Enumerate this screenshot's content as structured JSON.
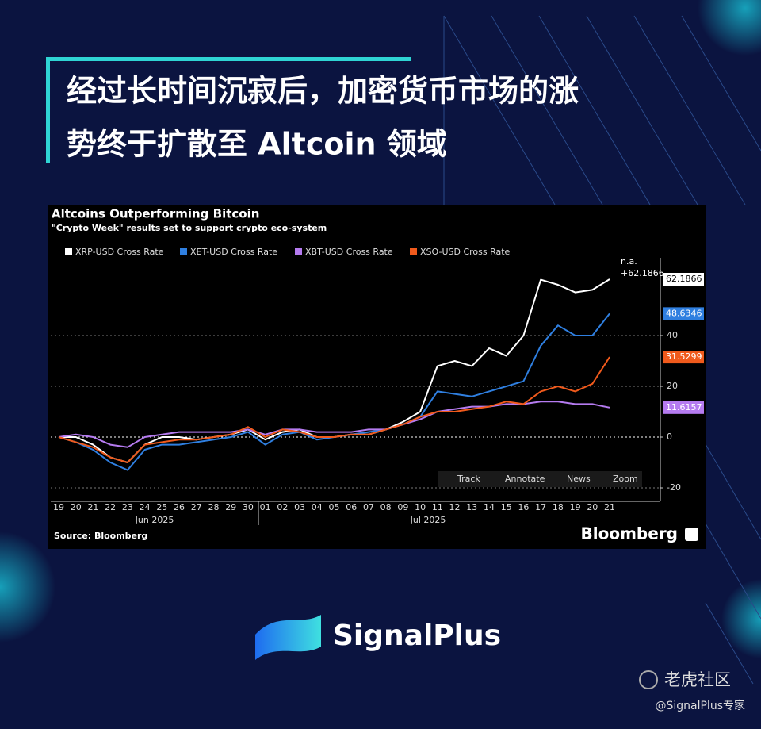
{
  "header": {
    "title_lines": [
      "经过长时间沉寂后，加密货币市场的涨",
      "势终于扩散至 Altcoin 领域"
    ]
  },
  "chart_data": {
    "type": "line",
    "title": "Altcoins Outperforming Bitcoin",
    "subtitle": "\"Crypto Week\" results set to support crypto eco-system",
    "categories": [
      "19",
      "20",
      "21",
      "22",
      "23",
      "24",
      "25",
      "26",
      "27",
      "28",
      "29",
      "30",
      "01",
      "02",
      "03",
      "04",
      "05",
      "06",
      "07",
      "08",
      "09",
      "10",
      "11",
      "12",
      "13",
      "14",
      "15",
      "16",
      "17",
      "18",
      "19",
      "20",
      "21"
    ],
    "months": [
      "Jun 2025",
      "Jul 2025"
    ],
    "ylim": [
      -25,
      72
    ],
    "yticks": [
      -20,
      0,
      20,
      40
    ],
    "grid": true,
    "series": [
      {
        "name": "XRP-USD Cross Rate",
        "color": "#ffffff",
        "last_value": 62.1866,
        "values": [
          0,
          0,
          -3,
          -8,
          -10,
          -3,
          0,
          0,
          -1,
          0,
          1,
          3,
          -1,
          2,
          3,
          0,
          0,
          1,
          1,
          3,
          6,
          10,
          28,
          30,
          28,
          35,
          32,
          40,
          62,
          60,
          57,
          58,
          62.1866
        ]
      },
      {
        "name": "XET-USD Cross Rate",
        "color": "#2f7fe0",
        "last_value": 48.6346,
        "values": [
          0,
          -2,
          -5,
          -10,
          -13,
          -5,
          -3,
          -3,
          -2,
          -1,
          0,
          2,
          -3,
          1,
          2,
          -1,
          0,
          1,
          2,
          3,
          5,
          8,
          18,
          17,
          16,
          18,
          20,
          22,
          36,
          44,
          40,
          40,
          48.6346
        ]
      },
      {
        "name": "XBT-USD Cross Rate",
        "color": "#b57bf0",
        "last_value": 11.6157,
        "values": [
          0,
          1,
          0,
          -3,
          -4,
          0,
          1,
          2,
          2,
          2,
          2,
          3,
          1,
          3,
          3,
          2,
          2,
          2,
          3,
          3,
          5,
          7,
          10,
          11,
          12,
          12,
          13,
          13,
          14,
          14,
          13,
          13,
          11.6157
        ]
      },
      {
        "name": "XSO-USD Cross Rate",
        "color": "#f05a1c",
        "last_value": 31.5299,
        "values": [
          0,
          -2,
          -4,
          -8,
          -10,
          -3,
          -2,
          -1,
          -1,
          0,
          1,
          4,
          0,
          3,
          2,
          0,
          0,
          1,
          1,
          3,
          5,
          8,
          10,
          10,
          11,
          12,
          14,
          13,
          18,
          20,
          18,
          21,
          31.5299
        ]
      }
    ],
    "annotations": [
      "n.a.",
      "+62.1866"
    ],
    "toolbar": [
      "Track",
      "Annotate",
      "News",
      "Zoom"
    ],
    "source": "Source: Bloomberg",
    "brand": "Bloomberg"
  },
  "footer": {
    "logo_text": "SignalPlus",
    "watermark": "老虎社区",
    "handle": "@SignalPlus专家"
  }
}
